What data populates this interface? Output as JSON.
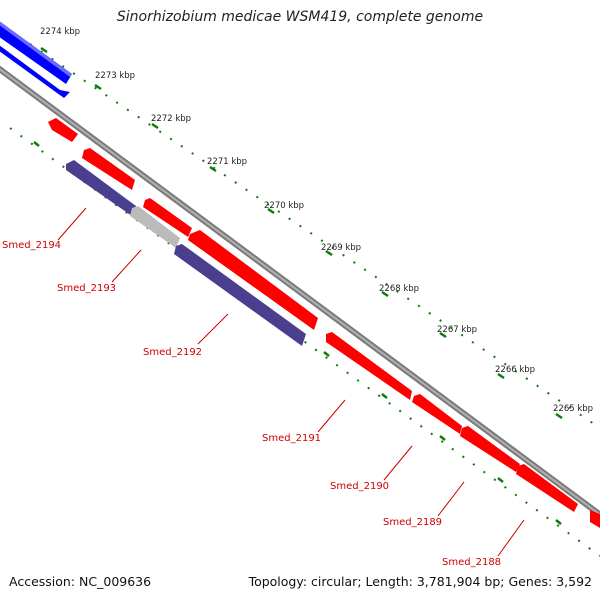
{
  "title": "Sinorhizobium medicae WSM419, complete genome",
  "ticks": [
    "2274 kbp",
    "2273 kbp",
    "2272 kbp",
    "2271 kbp",
    "2270 kbp",
    "2269 kbp",
    "2268 kbp",
    "2267 kbp",
    "2266 kbp",
    "2265 kbp"
  ],
  "genes": [
    "Smed_2194",
    "Smed_2193",
    "Smed_2192",
    "Smed_2191",
    "Smed_2190",
    "Smed_2189",
    "Smed_2188"
  ],
  "footer": {
    "accession_label": "Accession:",
    "accession_value": "NC_009636",
    "topology_label": "Topology:",
    "topology_value": "circular;",
    "length_label": "Length:",
    "length_value": "3,781,904 bp;",
    "genes_label": "Genes:",
    "genes_value": "3,592"
  },
  "colors": {
    "forward_cds": "#ff0000",
    "reverse_cds": "#0000ff",
    "rna_or_other": "#4a3f8f",
    "unannotated": "#bbbbbb",
    "backbone": "#808080",
    "tick_marks": "#008000",
    "gene_labels": "#cc0000"
  }
}
